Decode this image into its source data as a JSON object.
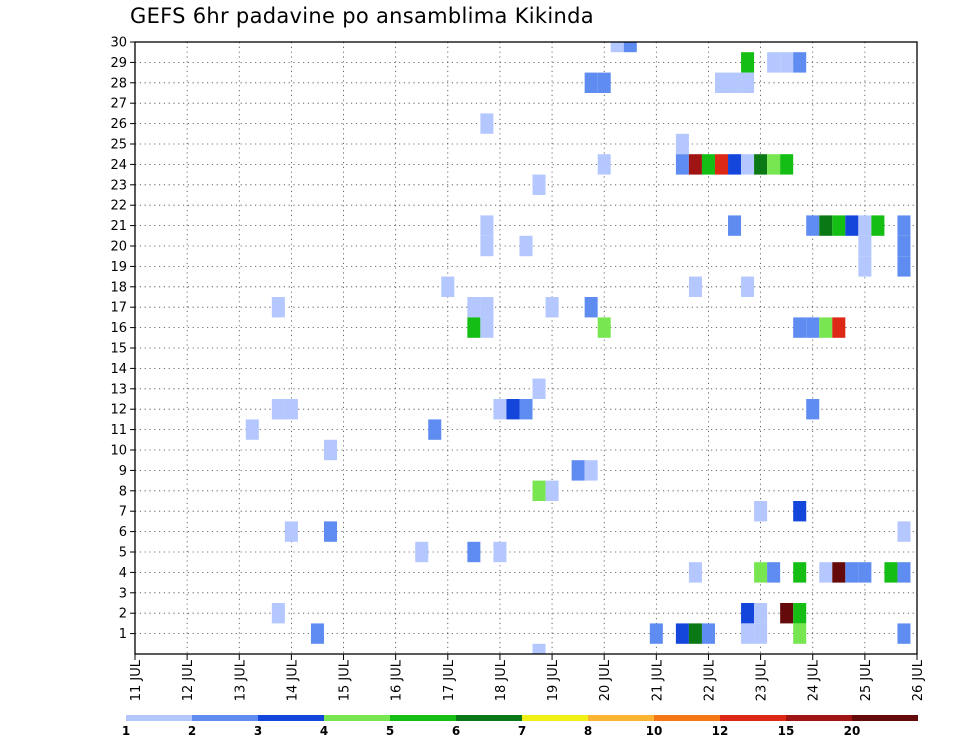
{
  "chart_data": {
    "type": "heatmap",
    "title": "GEFS 6hr padavine po ansamblima Kikinda",
    "xlabel": "",
    "ylabel": "",
    "x_ticks": [
      {
        "day": 11,
        "label": "11 JUL"
      },
      {
        "day": 12,
        "label": "12 JUL"
      },
      {
        "day": 13,
        "label": "13 JUL"
      },
      {
        "day": 14,
        "label": "14 JUL"
      },
      {
        "day": 15,
        "label": "15 JUL"
      },
      {
        "day": 16,
        "label": "16 JUL"
      },
      {
        "day": 17,
        "label": "17 JUL"
      },
      {
        "day": 18,
        "label": "18 JUL"
      },
      {
        "day": 19,
        "label": "19 JUL"
      },
      {
        "day": 20,
        "label": "20 JUL"
      },
      {
        "day": 21,
        "label": "21 JUL"
      },
      {
        "day": 22,
        "label": "22 JUL"
      },
      {
        "day": 23,
        "label": "23 JUL"
      },
      {
        "day": 24,
        "label": "24 JUL"
      },
      {
        "day": 25,
        "label": "25 JUL"
      },
      {
        "day": 26,
        "label": "26 JUL"
      }
    ],
    "x_range": [
      11,
      26
    ],
    "y_range": [
      0,
      30
    ],
    "y_ticks": [
      "1",
      "2",
      "3",
      "4",
      "5",
      "6",
      "7",
      "8",
      "9",
      "10",
      "11",
      "12",
      "13",
      "14",
      "15",
      "16",
      "17",
      "18",
      "19",
      "20",
      "21",
      "22",
      "23",
      "24",
      "25",
      "26",
      "27",
      "28",
      "29",
      "30"
    ],
    "grid": true,
    "colorbar": {
      "levels": [
        "1",
        "2",
        "3",
        "4",
        "5",
        "6",
        "7",
        "8",
        "10",
        "12",
        "15",
        "20"
      ],
      "colors": [
        "#b4c8ff",
        "#5f8cf0",
        "#1446dc",
        "#78e650",
        "#14be14",
        "#0a7814",
        "#f0f014",
        "#fab432",
        "#f57814",
        "#dc2814",
        "#a01414",
        "#640a0a"
      ]
    },
    "cells": [
      {
        "member": 30,
        "time": 20.25,
        "bin": 1
      },
      {
        "member": 30,
        "time": 20.5,
        "bin": 2
      },
      {
        "member": 29,
        "time": 22.75,
        "bin": 5
      },
      {
        "member": 29,
        "time": 23.25,
        "bin": 1
      },
      {
        "member": 29,
        "time": 23.5,
        "bin": 1
      },
      {
        "member": 29,
        "time": 23.75,
        "bin": 2
      },
      {
        "member": 28,
        "time": 19.75,
        "bin": 2
      },
      {
        "member": 28,
        "time": 20.0,
        "bin": 2
      },
      {
        "member": 28,
        "time": 22.25,
        "bin": 1
      },
      {
        "member": 28,
        "time": 22.5,
        "bin": 1
      },
      {
        "member": 28,
        "time": 22.75,
        "bin": 1
      },
      {
        "member": 26,
        "time": 17.75,
        "bin": 1
      },
      {
        "member": 25,
        "time": 21.5,
        "bin": 1
      },
      {
        "member": 24,
        "time": 20.0,
        "bin": 1
      },
      {
        "member": 24,
        "time": 21.5,
        "bin": 2
      },
      {
        "member": 24,
        "time": 21.75,
        "bin": 11
      },
      {
        "member": 24,
        "time": 22.0,
        "bin": 5
      },
      {
        "member": 24,
        "time": 22.25,
        "bin": 10
      },
      {
        "member": 24,
        "time": 22.5,
        "bin": 3
      },
      {
        "member": 24,
        "time": 22.75,
        "bin": 1
      },
      {
        "member": 24,
        "time": 23.0,
        "bin": 6
      },
      {
        "member": 24,
        "time": 23.25,
        "bin": 4
      },
      {
        "member": 24,
        "time": 23.5,
        "bin": 5
      },
      {
        "member": 23,
        "time": 18.75,
        "bin": 1
      },
      {
        "member": 21,
        "time": 17.75,
        "bin": 1
      },
      {
        "member": 21,
        "time": 22.5,
        "bin": 2
      },
      {
        "member": 21,
        "time": 24.0,
        "bin": 2
      },
      {
        "member": 21,
        "time": 24.25,
        "bin": 6
      },
      {
        "member": 21,
        "time": 24.5,
        "bin": 5
      },
      {
        "member": 21,
        "time": 24.75,
        "bin": 3
      },
      {
        "member": 21,
        "time": 25.0,
        "bin": 1
      },
      {
        "member": 21,
        "time": 25.25,
        "bin": 5
      },
      {
        "member": 21,
        "time": 25.75,
        "bin": 2
      },
      {
        "member": 20,
        "time": 17.75,
        "bin": 1
      },
      {
        "member": 20,
        "time": 18.5,
        "bin": 1
      },
      {
        "member": 20,
        "time": 25.0,
        "bin": 1
      },
      {
        "member": 20,
        "time": 25.75,
        "bin": 2
      },
      {
        "member": 19,
        "time": 25.0,
        "bin": 1
      },
      {
        "member": 19,
        "time": 25.75,
        "bin": 2
      },
      {
        "member": 18,
        "time": 17.0,
        "bin": 1
      },
      {
        "member": 18,
        "time": 21.75,
        "bin": 1
      },
      {
        "member": 18,
        "time": 22.75,
        "bin": 1
      },
      {
        "member": 17,
        "time": 13.75,
        "bin": 1
      },
      {
        "member": 17,
        "time": 17.5,
        "bin": 1
      },
      {
        "member": 17,
        "time": 17.75,
        "bin": 1
      },
      {
        "member": 17,
        "time": 19.0,
        "bin": 1
      },
      {
        "member": 17,
        "time": 19.75,
        "bin": 2
      },
      {
        "member": 16,
        "time": 17.5,
        "bin": 5
      },
      {
        "member": 16,
        "time": 17.75,
        "bin": 1
      },
      {
        "member": 16,
        "time": 20.0,
        "bin": 4
      },
      {
        "member": 16,
        "time": 23.75,
        "bin": 2
      },
      {
        "member": 16,
        "time": 24.0,
        "bin": 2
      },
      {
        "member": 16,
        "time": 24.25,
        "bin": 4
      },
      {
        "member": 16,
        "time": 24.5,
        "bin": 10
      },
      {
        "member": 13,
        "time": 18.75,
        "bin": 1
      },
      {
        "member": 12,
        "time": 13.75,
        "bin": 1
      },
      {
        "member": 12,
        "time": 14.0,
        "bin": 1
      },
      {
        "member": 12,
        "time": 18.0,
        "bin": 1
      },
      {
        "member": 12,
        "time": 18.25,
        "bin": 3
      },
      {
        "member": 12,
        "time": 18.5,
        "bin": 2
      },
      {
        "member": 12,
        "time": 24.0,
        "bin": 2
      },
      {
        "member": 11,
        "time": 13.25,
        "bin": 1
      },
      {
        "member": 11,
        "time": 16.75,
        "bin": 2
      },
      {
        "member": 10,
        "time": 14.75,
        "bin": 1
      },
      {
        "member": 9,
        "time": 19.5,
        "bin": 2
      },
      {
        "member": 9,
        "time": 19.75,
        "bin": 1
      },
      {
        "member": 8,
        "time": 18.75,
        "bin": 4
      },
      {
        "member": 8,
        "time": 19.0,
        "bin": 1
      },
      {
        "member": 7,
        "time": 23.0,
        "bin": 1
      },
      {
        "member": 7,
        "time": 23.75,
        "bin": 3
      },
      {
        "member": 6,
        "time": 14.0,
        "bin": 1
      },
      {
        "member": 6,
        "time": 14.75,
        "bin": 2
      },
      {
        "member": 6,
        "time": 25.75,
        "bin": 1
      },
      {
        "member": 5,
        "time": 16.5,
        "bin": 1
      },
      {
        "member": 5,
        "time": 17.5,
        "bin": 2
      },
      {
        "member": 5,
        "time": 18.0,
        "bin": 1
      },
      {
        "member": 4,
        "time": 21.75,
        "bin": 1
      },
      {
        "member": 4,
        "time": 23.0,
        "bin": 4
      },
      {
        "member": 4,
        "time": 23.25,
        "bin": 2
      },
      {
        "member": 4,
        "time": 23.75,
        "bin": 5
      },
      {
        "member": 4,
        "time": 24.25,
        "bin": 1
      },
      {
        "member": 4,
        "time": 24.5,
        "bin": 12
      },
      {
        "member": 4,
        "time": 24.75,
        "bin": 2
      },
      {
        "member": 4,
        "time": 25.0,
        "bin": 2
      },
      {
        "member": 4,
        "time": 25.5,
        "bin": 5
      },
      {
        "member": 4,
        "time": 25.75,
        "bin": 2
      },
      {
        "member": 2,
        "time": 13.75,
        "bin": 1
      },
      {
        "member": 2,
        "time": 22.75,
        "bin": 3
      },
      {
        "member": 2,
        "time": 23.0,
        "bin": 1
      },
      {
        "member": 2,
        "time": 23.5,
        "bin": 12
      },
      {
        "member": 2,
        "time": 23.75,
        "bin": 5
      },
      {
        "member": 1,
        "time": 14.5,
        "bin": 2
      },
      {
        "member": 1,
        "time": 21.0,
        "bin": 2
      },
      {
        "member": 1,
        "time": 21.5,
        "bin": 3
      },
      {
        "member": 1,
        "time": 21.75,
        "bin": 6
      },
      {
        "member": 1,
        "time": 22.0,
        "bin": 2
      },
      {
        "member": 1,
        "time": 22.75,
        "bin": 1
      },
      {
        "member": 1,
        "time": 23.0,
        "bin": 1
      },
      {
        "member": 1,
        "time": 23.75,
        "bin": 4
      },
      {
        "member": 1,
        "time": 25.75,
        "bin": 2
      },
      {
        "member": 0,
        "time": 18.75,
        "bin": 1
      }
    ]
  }
}
